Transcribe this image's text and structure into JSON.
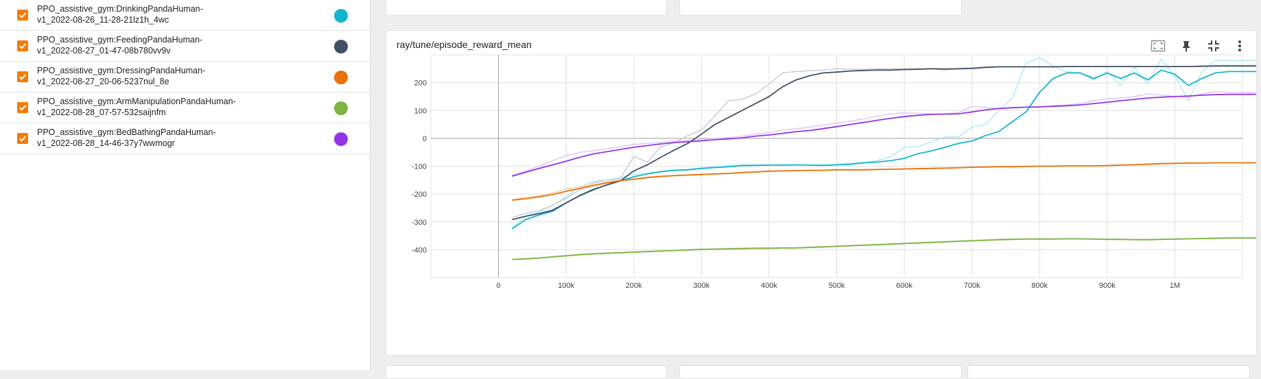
{
  "runs": [
    {
      "label": "PPO_assistive_gym:DrinkingPandaHuman-\nv1_2022-08-26_11-28-21lz1h_4wc",
      "color": "#12b5cb"
    },
    {
      "label": "PPO_assistive_gym:FeedingPandaHuman-\nv1_2022-08-27_01-47-08b780vv9v",
      "color": "#425066"
    },
    {
      "label": "PPO_assistive_gym:DressingPandaHuman-\nv1_2022-08-27_20-06-5237nul_8e",
      "color": "#e8710a"
    },
    {
      "label": "PPO_assistive_gym:ArmManipulationPandaHuman-\nv1_2022-08-28_07-57-532saijnfm",
      "color": "#7cb342"
    },
    {
      "label": "PPO_assistive_gym:BedBathingPandaHuman-\nv1_2022-08-28_14-46-37y7wwmogr",
      "color": "#9334e6"
    }
  ],
  "card": {
    "title": "ray/tune/episode_reward_mean",
    "icons": [
      "fit-domain-icon",
      "pin-icon",
      "collapse-icon",
      "more-vert-icon"
    ]
  },
  "chart_data": {
    "type": "line",
    "title": "ray/tune/episode_reward_mean",
    "xlabel": "",
    "ylabel": "",
    "xlim": [
      -100000,
      1100000
    ],
    "ylim": [
      -500,
      300
    ],
    "x_ticks": [
      0,
      100000,
      200000,
      300000,
      400000,
      500000,
      600000,
      700000,
      800000,
      900000,
      1000000
    ],
    "x_tick_labels": [
      "0",
      "100k",
      "200k",
      "300k",
      "400k",
      "500k",
      "600k",
      "700k",
      "800k",
      "900k",
      "1M"
    ],
    "y_ticks": [
      -400,
      -300,
      -200,
      -100,
      0,
      100,
      200
    ],
    "y_tick_labels": [
      "-400",
      "-300",
      "-200",
      "-100",
      "0",
      "100",
      "200"
    ],
    "grid": true,
    "x": [
      20000,
      40000,
      60000,
      80000,
      100000,
      120000,
      140000,
      160000,
      180000,
      200000,
      220000,
      240000,
      260000,
      280000,
      300000,
      320000,
      340000,
      360000,
      380000,
      400000,
      420000,
      440000,
      460000,
      480000,
      500000,
      520000,
      540000,
      560000,
      580000,
      600000,
      620000,
      640000,
      660000,
      680000,
      700000,
      720000,
      740000,
      760000,
      780000,
      800000,
      820000,
      840000,
      860000,
      880000,
      900000,
      920000,
      940000,
      960000,
      980000,
      1000000,
      1020000,
      1040000,
      1060000,
      1080000,
      1100000,
      1120000,
      1140000,
      1160000
    ],
    "series": [
      {
        "name": "PPO_assistive_gym:DrinkingPandaHuman-v1_2022-08-26_11-28-21lz1h_4wc",
        "color": "#12b5cb",
        "raw_color": "#b2ebf2",
        "values": [
          -325,
          -292,
          -275,
          -262,
          -232,
          -205,
          -183,
          -168,
          -153,
          -138,
          -128,
          -120,
          -115,
          -113,
          -108,
          -105,
          -102,
          -98,
          -97,
          -96,
          -96,
          -95,
          -96,
          -97,
          -95,
          -93,
          -88,
          -85,
          -80,
          -72,
          -55,
          -45,
          -32,
          -18,
          -10,
          10,
          25,
          60,
          95,
          165,
          215,
          235,
          235,
          215,
          235,
          215,
          235,
          210,
          245,
          230,
          190,
          215,
          235,
          240,
          240,
          240,
          240,
          240
        ],
        "raw_values": [
          -320,
          -280,
          -265,
          -240,
          -210,
          -175,
          -155,
          -150,
          -140,
          -130,
          -125,
          -118,
          -112,
          -112,
          -106,
          -102,
          -98,
          -95,
          -96,
          -96,
          -95,
          -95,
          -96,
          -96,
          -94,
          -90,
          -86,
          -80,
          -65,
          -32,
          -30,
          -12,
          5,
          5,
          40,
          50,
          100,
          145,
          270,
          290,
          260,
          240,
          235,
          210,
          240,
          190,
          255,
          195,
          285,
          225,
          135,
          240,
          280,
          280,
          280,
          280,
          280,
          280
        ]
      },
      {
        "name": "PPO_assistive_gym:FeedingPandaHuman-v1_2022-08-27_01-47-08b780vv9v",
        "color": "#425066",
        "raw_color": "#c9ced6",
        "values": [
          -292,
          -280,
          -270,
          -258,
          -232,
          -206,
          -185,
          -167,
          -153,
          -117,
          -95,
          -68,
          -42,
          -18,
          15,
          50,
          75,
          100,
          125,
          150,
          185,
          210,
          225,
          235,
          238,
          242,
          244,
          245,
          245,
          247,
          248,
          250,
          249,
          250,
          251,
          255,
          257,
          257,
          257,
          257,
          257,
          258,
          258,
          258,
          258,
          258,
          258,
          258,
          258,
          258,
          258,
          259,
          260,
          260,
          260,
          260,
          260,
          260
        ],
        "raw_values": [
          -285,
          -270,
          -260,
          -240,
          -215,
          -185,
          -160,
          -150,
          -145,
          -65,
          -85,
          -30,
          -15,
          10,
          30,
          80,
          135,
          140,
          160,
          195,
          235,
          240,
          243,
          245,
          250,
          248,
          248,
          250,
          250,
          250,
          250,
          250,
          245,
          250,
          254,
          256,
          258,
          258,
          258,
          258,
          258,
          258,
          258,
          258,
          258,
          258,
          258,
          258,
          258,
          258,
          258,
          260,
          262,
          262,
          262,
          262,
          262,
          262
        ]
      },
      {
        "name": "PPO_assistive_gym:DressingPandaHuman-v1_2022-08-27_20-06-5237nul_8e",
        "color": "#e8710a",
        "raw_color": "#fbd0a9",
        "values": [
          -222,
          -217,
          -210,
          -202,
          -190,
          -180,
          -170,
          -160,
          -152,
          -147,
          -141,
          -137,
          -134,
          -132,
          -130,
          -128,
          -126,
          -123,
          -121,
          -118,
          -117,
          -116,
          -115,
          -115,
          -113,
          -113,
          -113,
          -112,
          -111,
          -110,
          -109,
          -108,
          -107,
          -106,
          -104,
          -103,
          -102,
          -102,
          -101,
          -100,
          -100,
          -99,
          -99,
          -99,
          -98,
          -96,
          -95,
          -93,
          -91,
          -90,
          -89,
          -89,
          -88,
          -88,
          -88,
          -88,
          -88,
          -88
        ],
        "raw_values": [
          -220,
          -212,
          -205,
          -196,
          -182,
          -174,
          -166,
          -156,
          -150,
          -145,
          -139,
          -135,
          -133,
          -131,
          -129,
          -127,
          -125,
          -122,
          -120,
          -117,
          -116,
          -115,
          -114,
          -114,
          -112,
          -112,
          -112,
          -111,
          -110,
          -109,
          -108,
          -107,
          -106,
          -105,
          -103,
          -102,
          -101,
          -101,
          -100,
          -99,
          -99,
          -98,
          -98,
          -98,
          -97,
          -95,
          -94,
          -92,
          -90,
          -89,
          -88,
          -88,
          -87,
          -87,
          -87,
          -87,
          -87,
          -87
        ]
      },
      {
        "name": "PPO_assistive_gym:ArmManipulationPandaHuman-v1_2022-08-28_07-57-532saijnfm",
        "color": "#7cb342",
        "raw_color": "#d7e8c4",
        "values": [
          -435,
          -433,
          -430,
          -426,
          -422,
          -418,
          -415,
          -413,
          -411,
          -409,
          -407,
          -405,
          -403,
          -401,
          -399,
          -398,
          -397,
          -396,
          -395,
          -395,
          -394,
          -394,
          -392,
          -390,
          -388,
          -386,
          -384,
          -382,
          -380,
          -378,
          -376,
          -374,
          -372,
          -370,
          -368,
          -366,
          -364,
          -363,
          -362,
          -362,
          -362,
          -361,
          -361,
          -362,
          -363,
          -363,
          -364,
          -364,
          -363,
          -362,
          -361,
          -360,
          -359,
          -358,
          -358,
          -358,
          -358,
          -358
        ],
        "raw_values": [
          -434,
          -431,
          -428,
          -424,
          -420,
          -416,
          -413,
          -411,
          -409,
          -407,
          -405,
          -403,
          -401,
          -399,
          -397,
          -396,
          -395,
          -394,
          -393,
          -393,
          -392,
          -392,
          -390,
          -388,
          -386,
          -384,
          -382,
          -380,
          -378,
          -376,
          -374,
          -372,
          -370,
          -368,
          -366,
          -364,
          -362,
          -361,
          -360,
          -360,
          -360,
          -360,
          -360,
          -361,
          -362,
          -362,
          -363,
          -363,
          -362,
          -361,
          -360,
          -359,
          -358,
          -357,
          -357,
          -357,
          -357,
          -357
        ]
      },
      {
        "name": "PPO_assistive_gym:BedBathingPandaHuman-v1_2022-08-28_14-46-37y7wwmogr",
        "color": "#9334e6",
        "raw_color": "#e1c6f8",
        "values": [
          -136,
          -122,
          -108,
          -95,
          -82,
          -68,
          -56,
          -48,
          -40,
          -32,
          -26,
          -20,
          -15,
          -12,
          -9,
          -5,
          -2,
          2,
          8,
          12,
          18,
          24,
          28,
          35,
          42,
          50,
          57,
          65,
          72,
          78,
          83,
          86,
          87,
          88,
          95,
          102,
          107,
          110,
          112,
          113,
          115,
          117,
          120,
          125,
          130,
          135,
          140,
          145,
          148,
          150,
          152,
          155,
          157,
          158,
          158,
          158,
          158,
          158
        ],
        "raw_values": [
          -133,
          -118,
          -100,
          -80,
          -62,
          -50,
          -44,
          -38,
          -30,
          -22,
          -18,
          -14,
          -10,
          -8,
          -5,
          0,
          3,
          8,
          15,
          20,
          30,
          35,
          40,
          48,
          55,
          62,
          70,
          80,
          88,
          92,
          90,
          88,
          88,
          92,
          115,
          112,
          108,
          110,
          112,
          114,
          118,
          120,
          125,
          135,
          142,
          145,
          150,
          160,
          155,
          150,
          148,
          160,
          168,
          165,
          165,
          165,
          165,
          165
        ]
      }
    ]
  }
}
